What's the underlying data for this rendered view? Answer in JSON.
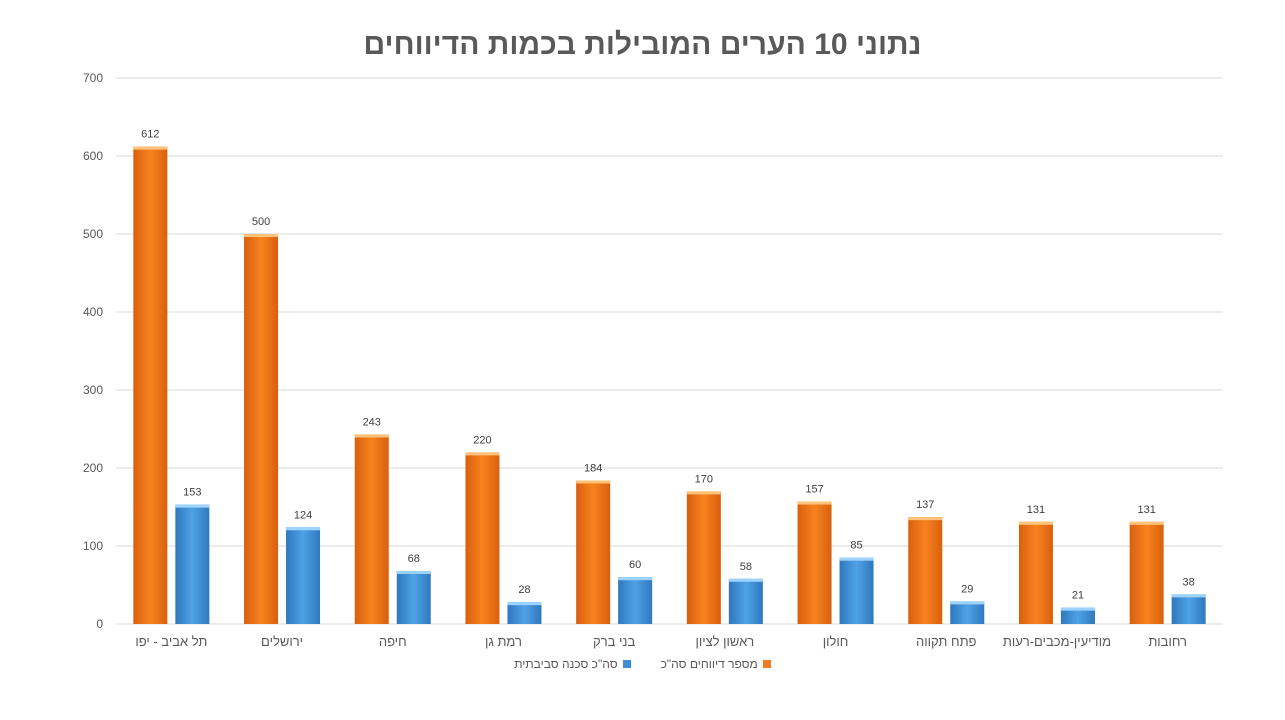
{
  "colors": {
    "series1": "#F47A1F",
    "series2": "#3D8FD6",
    "grid": "#D9D9D9"
  },
  "chart_data": {
    "type": "bar",
    "title": "נתוני 10 הערים המובילות בכמות הדיווחים",
    "categories": [
      "תל אביב - יפו",
      "ירושלים",
      "חיפה",
      "רמת גן",
      "בני ברק",
      "ראשון לציון",
      "חולון",
      "פתח תקווה",
      "מודיעין-מכבים-רעות",
      "רחובות"
    ],
    "series": [
      {
        "name": "מספר דיווחים סה\"כ",
        "values": [
          612,
          500,
          243,
          220,
          184,
          170,
          157,
          137,
          131,
          131
        ]
      },
      {
        "name": "סה\"כ סכנה סביבתית",
        "values": [
          153,
          124,
          68,
          28,
          60,
          58,
          85,
          29,
          21,
          38
        ]
      }
    ],
    "ylim": [
      0,
      700
    ],
    "yticks": [
      0,
      100,
      200,
      300,
      400,
      500,
      600,
      700
    ],
    "grid": true,
    "legend_position": "bottom"
  }
}
